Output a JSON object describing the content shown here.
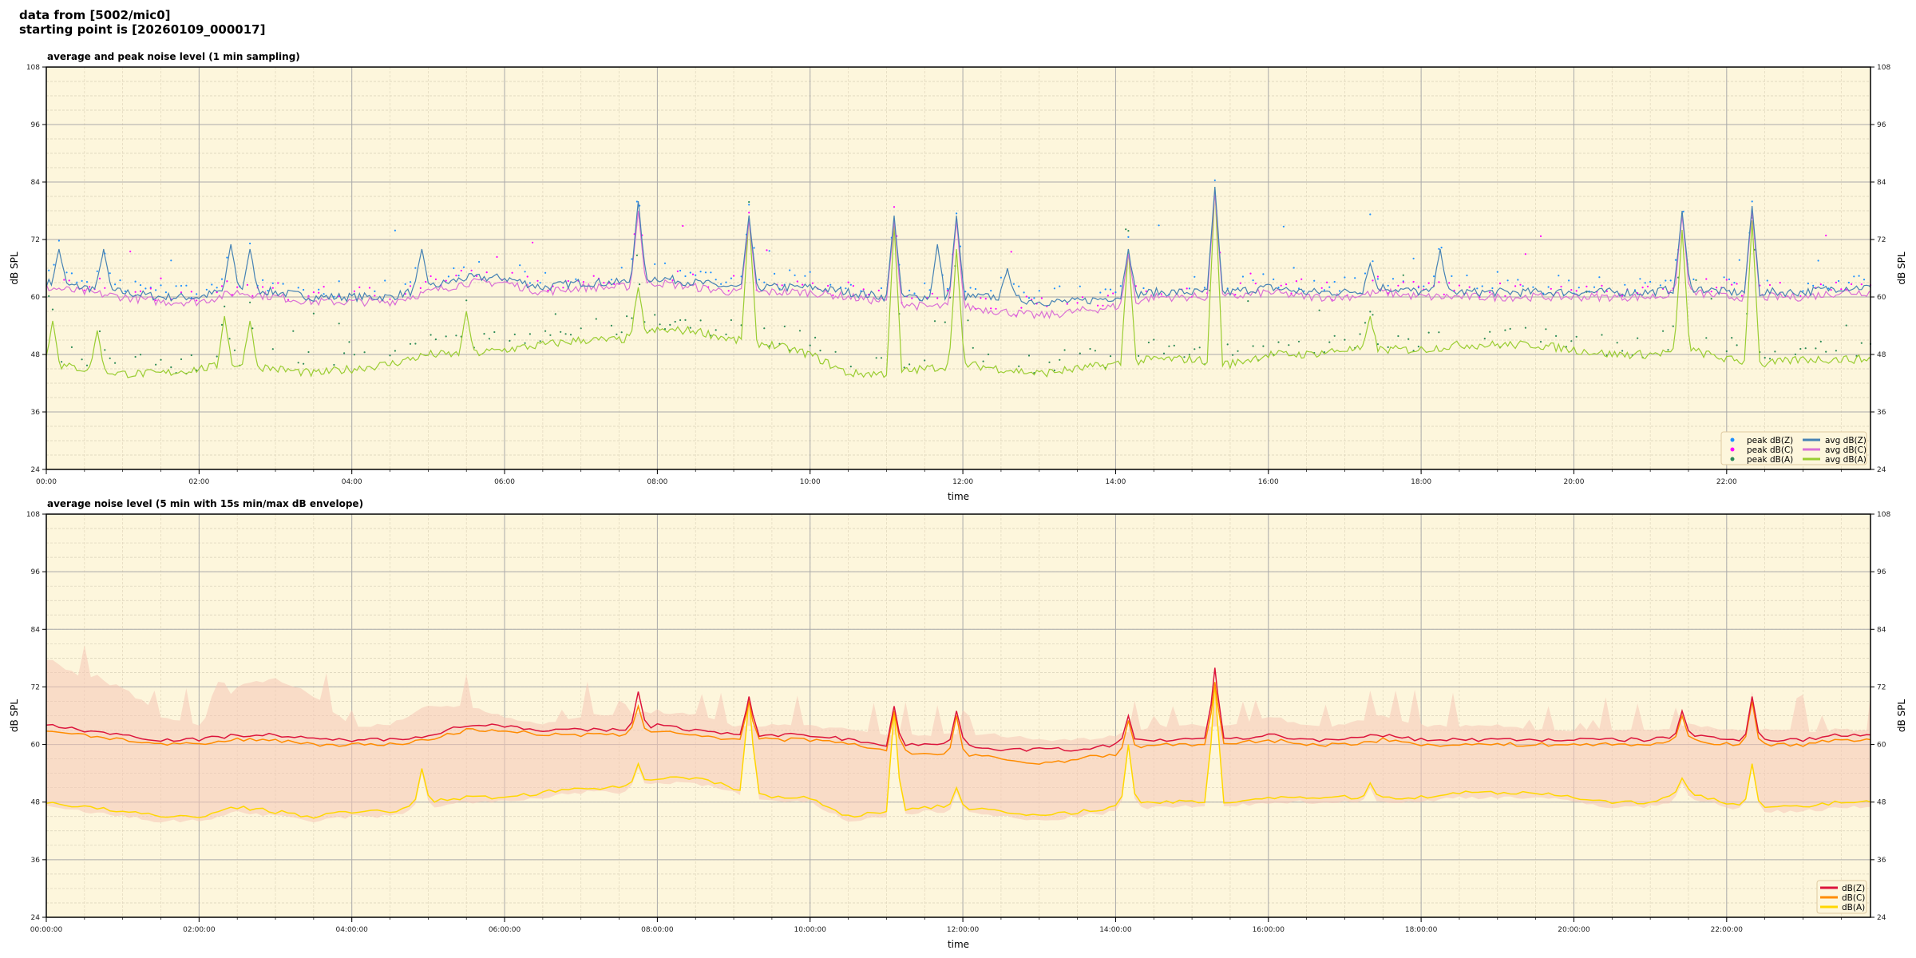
{
  "header": {
    "line1": "data from [5002/mic0]",
    "line2": "starting point is [20260109_000017]"
  },
  "chart_data": [
    {
      "type": "line",
      "title": "average and peak noise level (1 min sampling)",
      "xlabel": "time",
      "ylabel": "dB SPL",
      "ylim": [
        24,
        108
      ],
      "yticks": [
        24,
        36,
        48,
        60,
        72,
        84,
        96,
        108
      ],
      "xlim": [
        "00:00",
        "23:53"
      ],
      "xticks": [
        "00:00",
        "02:00",
        "04:00",
        "06:00",
        "08:00",
        "10:00",
        "12:00",
        "14:00",
        "16:00",
        "18:00",
        "20:00",
        "22:00"
      ],
      "grid": true,
      "background": "#fdf6dc",
      "legend_position": "bottom-right",
      "x": [
        "00:00",
        "00:30",
        "01:00",
        "01:30",
        "02:00",
        "02:30",
        "03:00",
        "03:30",
        "04:00",
        "04:30",
        "05:00",
        "05:30",
        "06:00",
        "06:30",
        "07:00",
        "07:30",
        "08:00",
        "08:30",
        "09:00",
        "09:30",
        "10:00",
        "10:30",
        "11:00",
        "11:30",
        "12:00",
        "12:30",
        "13:00",
        "13:30",
        "14:00",
        "14:30",
        "15:00",
        "15:30",
        "16:00",
        "16:30",
        "17:00",
        "17:30",
        "18:00",
        "18:30",
        "19:00",
        "19:30",
        "20:00",
        "20:30",
        "21:00",
        "21:30",
        "22:00",
        "22:30",
        "23:00",
        "23:30",
        "23:53"
      ],
      "series": [
        {
          "name": "avg dB(Z)",
          "kind": "line",
          "color": "#4682b4",
          "values": [
            63,
            62,
            61,
            60,
            60,
            62,
            61,
            60,
            60,
            60,
            62,
            64,
            64,
            62,
            63,
            63,
            64,
            63,
            62,
            62,
            62,
            61,
            60,
            60,
            60,
            60,
            59,
            59,
            60,
            61,
            61,
            61,
            62,
            61,
            61,
            62,
            61,
            61,
            61,
            61,
            61,
            61,
            61,
            62,
            61,
            61,
            61,
            62,
            62
          ],
          "spikes": [
            [
              "00:10",
              70
            ],
            [
              "00:45",
              70
            ],
            [
              "02:25",
              71
            ],
            [
              "02:40",
              70
            ],
            [
              "04:55",
              70
            ],
            [
              "07:45",
              80
            ],
            [
              "09:12",
              77
            ],
            [
              "11:06",
              77
            ],
            [
              "11:40",
              71
            ],
            [
              "11:55",
              77
            ],
            [
              "12:35",
              66
            ],
            [
              "14:10",
              70
            ],
            [
              "15:18",
              83
            ],
            [
              "17:20",
              67
            ],
            [
              "18:15",
              70
            ],
            [
              "21:25",
              78
            ],
            [
              "22:20",
              79
            ]
          ]
        },
        {
          "name": "avg dB(C)",
          "kind": "line",
          "color": "#da70d6",
          "values": [
            62,
            61,
            60,
            59,
            59,
            61,
            60,
            59,
            59,
            59,
            61,
            63,
            63,
            61,
            62,
            62,
            63,
            62,
            61,
            61,
            61,
            60,
            59,
            58,
            58,
            57,
            56,
            57,
            58,
            60,
            60,
            60,
            61,
            60,
            60,
            61,
            60,
            60,
            60,
            60,
            60,
            60,
            60,
            61,
            60,
            60,
            60,
            61,
            61
          ],
          "spikes": [
            [
              "07:45",
              78
            ],
            [
              "09:12",
              76
            ],
            [
              "11:06",
              76
            ],
            [
              "11:55",
              76
            ],
            [
              "14:10",
              69
            ],
            [
              "15:18",
              82
            ],
            [
              "21:25",
              77
            ],
            [
              "22:20",
              78
            ]
          ]
        },
        {
          "name": "avg dB(A)",
          "kind": "line",
          "color": "#9acd32",
          "values": [
            46,
            45,
            44,
            44,
            45,
            46,
            45,
            44,
            45,
            46,
            48,
            48,
            49,
            50,
            51,
            51,
            53,
            53,
            51,
            50,
            48,
            44,
            44,
            45,
            46,
            45,
            44,
            45,
            46,
            47,
            47,
            46,
            48,
            48,
            49,
            49,
            49,
            50,
            50,
            50,
            49,
            48,
            48,
            49,
            47,
            46,
            47,
            47,
            47
          ],
          "spikes": [
            [
              "00:05",
              55
            ],
            [
              "00:40",
              53
            ],
            [
              "02:20",
              56
            ],
            [
              "02:40",
              55
            ],
            [
              "05:30",
              57
            ],
            [
              "07:45",
              62
            ],
            [
              "09:12",
              77
            ],
            [
              "11:06",
              75
            ],
            [
              "11:55",
              70
            ],
            [
              "14:10",
              70
            ],
            [
              "15:18",
              83
            ],
            [
              "17:20",
              56
            ],
            [
              "21:25",
              74
            ],
            [
              "22:20",
              76
            ]
          ]
        },
        {
          "name": "peak dB(Z)",
          "kind": "scatter",
          "color": "#1e90ff",
          "offset_from": "avg dB(Z)",
          "offset": 3
        },
        {
          "name": "peak dB(C)",
          "kind": "scatter",
          "color": "#ff00ff",
          "offset_from": "avg dB(C)",
          "offset": 3
        },
        {
          "name": "peak dB(A)",
          "kind": "scatter",
          "color": "#2e8b57",
          "offset_from": "avg dB(A)",
          "offset": 4
        }
      ],
      "legend": [
        "peak dB(Z)",
        "peak dB(C)",
        "peak dB(A)",
        "avg dB(Z)",
        "avg dB(C)",
        "avg dB(A)"
      ]
    },
    {
      "type": "line",
      "title": "average noise level (5 min with 15s min/max dB envelope)",
      "xlabel": "time",
      "ylabel": "dB SPL",
      "ylim": [
        24,
        108
      ],
      "yticks": [
        24,
        36,
        48,
        60,
        72,
        84,
        96,
        108
      ],
      "xlim": [
        "00:00:00",
        "23:53:00"
      ],
      "xticks": [
        "00:00:00",
        "02:00:00",
        "04:00:00",
        "06:00:00",
        "08:00:00",
        "10:00:00",
        "12:00:00",
        "14:00:00",
        "16:00:00",
        "18:00:00",
        "20:00:00",
        "22:00:00"
      ],
      "grid": true,
      "background": "#fdf6dc",
      "legend_position": "bottom-right",
      "x": [
        "00:00",
        "00:30",
        "01:00",
        "01:30",
        "02:00",
        "02:30",
        "03:00",
        "03:30",
        "04:00",
        "04:30",
        "05:00",
        "05:30",
        "06:00",
        "06:30",
        "07:00",
        "07:30",
        "08:00",
        "08:30",
        "09:00",
        "09:30",
        "10:00",
        "10:30",
        "11:00",
        "11:30",
        "12:00",
        "12:30",
        "13:00",
        "13:30",
        "14:00",
        "14:30",
        "15:00",
        "15:30",
        "16:00",
        "16:30",
        "17:00",
        "17:30",
        "18:00",
        "18:30",
        "19:00",
        "19:30",
        "20:00",
        "20:30",
        "21:00",
        "21:30",
        "22:00",
        "22:30",
        "23:00",
        "23:30",
        "23:53"
      ],
      "envelope_max": [
        78,
        74,
        72,
        66,
        64,
        72,
        74,
        70,
        64,
        64,
        68,
        68,
        66,
        64,
        66,
        66,
        67,
        66,
        64,
        64,
        64,
        63,
        62,
        62,
        62,
        62,
        61,
        61,
        62,
        64,
        64,
        64,
        66,
        64,
        64,
        66,
        64,
        64,
        64,
        63,
        63,
        63,
        63,
        64,
        63,
        63,
        63,
        63,
        63
      ],
      "envelope_color": "#f6c6b6",
      "series": [
        {
          "name": "dB(Z)",
          "color": "#dc143c",
          "values": [
            64,
            63,
            62,
            61,
            61,
            62,
            62,
            61,
            61,
            61,
            62,
            64,
            64,
            63,
            63,
            63,
            64,
            63,
            62,
            62,
            62,
            61,
            60,
            60,
            60,
            59,
            59,
            59,
            60,
            61,
            61,
            61,
            62,
            61,
            61,
            62,
            61,
            61,
            61,
            61,
            61,
            61,
            61,
            62,
            61,
            61,
            61,
            62,
            62
          ],
          "spikes": [
            [
              "07:45",
              71
            ],
            [
              "09:12",
              70
            ],
            [
              "11:06",
              68
            ],
            [
              "11:55",
              67
            ],
            [
              "14:10",
              66
            ],
            [
              "15:18",
              76
            ],
            [
              "21:25",
              67
            ],
            [
              "22:20",
              70
            ]
          ]
        },
        {
          "name": "dB(C)",
          "color": "#ff8c00",
          "values": [
            63,
            62,
            61,
            60,
            60,
            61,
            61,
            60,
            60,
            60,
            61,
            63,
            63,
            62,
            62,
            62,
            63,
            62,
            61,
            61,
            61,
            60,
            59,
            58,
            58,
            57,
            56,
            57,
            58,
            60,
            60,
            60,
            61,
            60,
            60,
            61,
            60,
            60,
            60,
            60,
            60,
            60,
            60,
            61,
            60,
            60,
            60,
            61,
            61
          ],
          "spikes": [
            [
              "07:45",
              68
            ],
            [
              "09:12",
              69
            ],
            [
              "11:06",
              67
            ],
            [
              "11:55",
              66
            ],
            [
              "14:10",
              65
            ],
            [
              "15:18",
              73
            ],
            [
              "21:25",
              66
            ],
            [
              "22:20",
              69
            ]
          ]
        },
        {
          "name": "dB(A)",
          "color": "#ffd700",
          "values": [
            48,
            47,
            46,
            45,
            45,
            47,
            46,
            45,
            46,
            46,
            48,
            49,
            49,
            50,
            51,
            51,
            53,
            53,
            51,
            49,
            49,
            45,
            46,
            47,
            47,
            46,
            45,
            46,
            47,
            48,
            48,
            48,
            49,
            49,
            49,
            49,
            49,
            50,
            50,
            50,
            49,
            48,
            48,
            50,
            48,
            47,
            47,
            48,
            48
          ],
          "spikes": [
            [
              "04:55",
              55
            ],
            [
              "07:45",
              56
            ],
            [
              "09:12",
              70
            ],
            [
              "11:06",
              67
            ],
            [
              "11:55",
              51
            ],
            [
              "14:10",
              60
            ],
            [
              "15:18",
              73
            ],
            [
              "17:20",
              52
            ],
            [
              "21:25",
              53
            ],
            [
              "22:20",
              56
            ]
          ]
        }
      ],
      "legend": [
        "dB(Z)",
        "dB(C)",
        "dB(A)"
      ]
    }
  ]
}
